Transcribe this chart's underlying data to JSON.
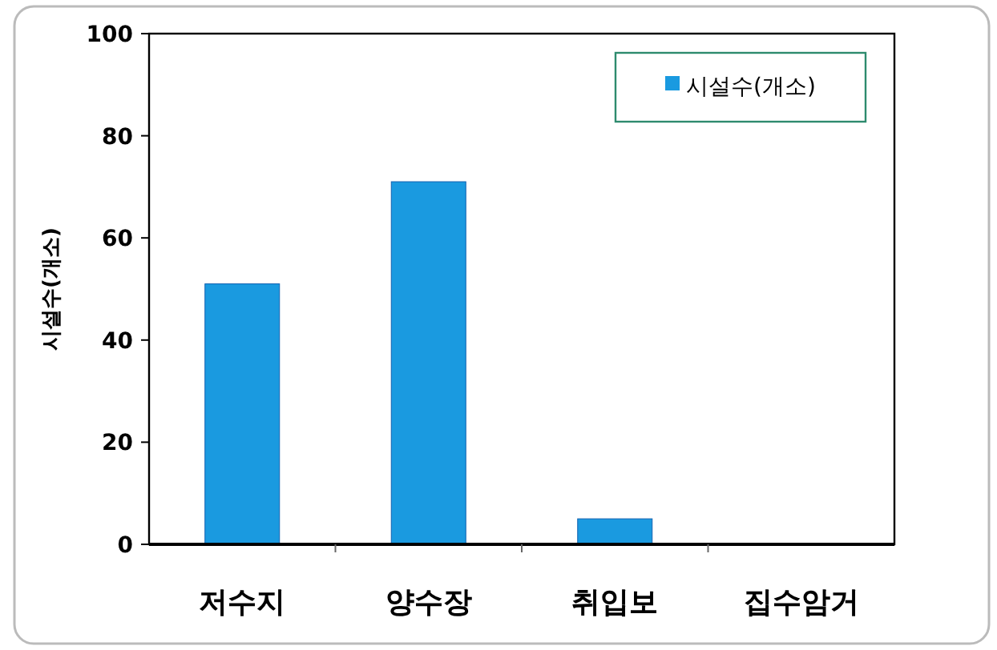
{
  "chart_data": {
    "type": "bar",
    "ylabel": "시설수(개소)",
    "categories": [
      "저수지",
      "양수장",
      "취입보",
      "집수암거"
    ],
    "series": [
      {
        "name": "시설수(개소)",
        "color": "#1a9ae0",
        "values": [
          51,
          71,
          5,
          0
        ]
      }
    ],
    "ylim": [
      0,
      100
    ],
    "yticks": [
      0,
      20,
      40,
      60,
      80,
      100
    ],
    "grid": false,
    "legend": "top right"
  }
}
